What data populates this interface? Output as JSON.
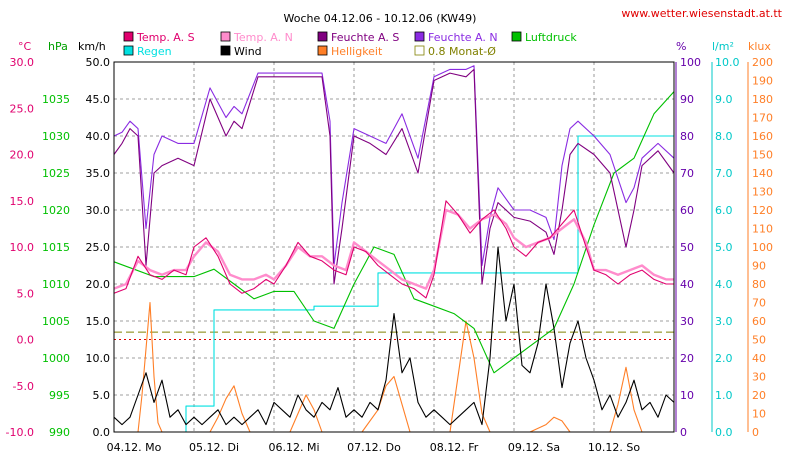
{
  "chart_data": {
    "type": "line",
    "title": "Woche 04.12.06 - 10.12.06 (KW49)",
    "source": "www.wetter.wiesenstadt.at.tt",
    "units": {
      "temp": "°C",
      "pressure": "hPa",
      "wind": "km/h",
      "humidity": "%",
      "rain": "l/m²",
      "light": "klux"
    },
    "axes": {
      "temp": {
        "min": -10,
        "max": 30,
        "ticks": [
          "30.0",
          "25.0",
          "20.0",
          "15.0",
          "10.0",
          "5.0",
          "0.0",
          "-5.0",
          "-10.0"
        ],
        "color": "#e0006e"
      },
      "pressure": {
        "min": 990,
        "max": 1040,
        "ticks": [
          "1035",
          "1030",
          "1025",
          "1020",
          "1015",
          "1010",
          "1005",
          "1000",
          "995",
          "990"
        ],
        "color": "#00c000"
      },
      "wind": {
        "min": 0,
        "max": 50,
        "ticks": [
          "50.0",
          "45.0",
          "40.0",
          "35.0",
          "30.0",
          "25.0",
          "20.0",
          "15.0",
          "10.0",
          "5.0",
          "0.0"
        ],
        "color": "#000000"
      },
      "humidity": {
        "min": 0,
        "max": 100,
        "ticks": [
          "100",
          "90",
          "80",
          "70",
          "60",
          "50",
          "40",
          "30",
          "20",
          "10",
          "0"
        ],
        "color": "#6600aa"
      },
      "rain": {
        "min": 0,
        "max": 10,
        "ticks": [
          "10.0",
          "9.0",
          "8.0",
          "7.0",
          "6.0",
          "5.0",
          "4.0",
          "3.0",
          "2.0",
          "1.0",
          "0.0"
        ],
        "color": "#00c8c8"
      },
      "light": {
        "min": 0,
        "max": 200,
        "ticks": [
          "200",
          "190",
          "180",
          "170",
          "160",
          "150",
          "140",
          "130",
          "120",
          "110",
          "100",
          "90",
          "80",
          "70",
          "60",
          "50",
          "40",
          "30",
          "20",
          "10",
          "0"
        ],
        "color": "#ff7f27"
      }
    },
    "x_labels": [
      "04.12. Mo",
      "05.12. Di",
      "06.12. Mi",
      "07.12. Do",
      "08.12. Fr",
      "09.12. Sa",
      "10.12. So"
    ],
    "legend": [
      {
        "name": "Temp. A. S",
        "color": "#e0006e",
        "kind": "fill"
      },
      {
        "name": "Temp. A. N",
        "color": "#ff8ccc",
        "kind": "fill"
      },
      {
        "name": "Feuchte A. S",
        "color": "#800080",
        "kind": "fill"
      },
      {
        "name": "Feuchte A. N",
        "color": "#8a2be2",
        "kind": "fill"
      },
      {
        "name": "Luftdruck",
        "color": "#00c000",
        "kind": "fill"
      },
      {
        "name": "Regen",
        "color": "#00e0e0",
        "kind": "fill"
      },
      {
        "name": "Wind",
        "color": "#000000",
        "kind": "fill"
      },
      {
        "name": "Helligkeit",
        "color": "#ff7f27",
        "kind": "fill"
      },
      {
        "name": "0.8 Monat-Ø",
        "color": "#808000",
        "kind": "outline"
      }
    ],
    "reference_lines": [
      {
        "name": "0.8 Monat-Ø",
        "axis": "wind",
        "value": 13.5,
        "color": "#808000",
        "style": "dashed"
      },
      {
        "name": "zero",
        "axis": "temp",
        "value": 0.0,
        "color": "#e00000",
        "style": "dotted"
      }
    ],
    "series": [
      {
        "name": "Temp. A. S",
        "axis": "temp",
        "color": "#e0006e",
        "x": [
          0,
          0.15,
          0.3,
          0.45,
          0.6,
          0.75,
          0.9,
          1.0,
          1.15,
          1.3,
          1.45,
          1.6,
          1.75,
          1.9,
          2.0,
          2.15,
          2.3,
          2.45,
          2.6,
          2.75,
          2.9,
          3.0,
          3.15,
          3.3,
          3.45,
          3.6,
          3.75,
          3.9,
          4.0,
          4.15,
          4.3,
          4.45,
          4.6,
          4.75,
          4.9,
          5.0,
          5.15,
          5.3,
          5.45,
          5.6,
          5.75,
          5.9,
          6.0,
          6.15,
          6.3,
          6.45,
          6.6,
          6.75,
          6.9,
          7.0
        ],
        "y": [
          5.0,
          5.5,
          9.0,
          7.0,
          6.5,
          7.5,
          7.0,
          10.0,
          11.0,
          9.0,
          6.0,
          5.0,
          5.5,
          6.5,
          6.0,
          8.0,
          10.5,
          9.0,
          8.5,
          7.5,
          7.0,
          10.0,
          9.5,
          8.0,
          7.0,
          6.0,
          5.5,
          4.5,
          7.0,
          15.0,
          13.5,
          11.5,
          13.0,
          14.0,
          12.0,
          10.0,
          9.0,
          10.5,
          11.0,
          12.5,
          14.0,
          10.0,
          7.5,
          7.0,
          6.0,
          7.0,
          7.5,
          6.5,
          6.0,
          6.0
        ]
      },
      {
        "name": "Temp. A. N",
        "axis": "temp",
        "color": "#ff8ccc",
        "x": [
          0,
          0.15,
          0.3,
          0.45,
          0.6,
          0.75,
          0.9,
          1.0,
          1.15,
          1.3,
          1.45,
          1.6,
          1.75,
          1.9,
          2.0,
          2.15,
          2.3,
          2.45,
          2.6,
          2.75,
          2.9,
          3.0,
          3.15,
          3.3,
          3.45,
          3.6,
          3.75,
          3.9,
          4.0,
          4.15,
          4.3,
          4.45,
          4.6,
          4.75,
          4.9,
          5.0,
          5.15,
          5.3,
          5.45,
          5.6,
          5.75,
          5.9,
          6.0,
          6.15,
          6.3,
          6.45,
          6.6,
          6.75,
          6.9,
          7.0
        ],
        "y": [
          5.5,
          6.0,
          8.5,
          7.5,
          7.0,
          7.5,
          7.5,
          9.0,
          10.5,
          9.5,
          7.0,
          6.5,
          6.5,
          7.0,
          6.5,
          8.0,
          10.0,
          9.0,
          9.0,
          8.0,
          7.5,
          10.5,
          9.5,
          8.5,
          7.5,
          6.5,
          6.0,
          5.5,
          7.5,
          14.0,
          13.5,
          12.0,
          13.0,
          13.5,
          12.5,
          11.0,
          10.0,
          10.5,
          11.0,
          12.0,
          13.0,
          10.5,
          7.5,
          7.5,
          7.0,
          7.5,
          8.0,
          7.0,
          6.5,
          6.5
        ]
      },
      {
        "name": "Feuchte A. S",
        "axis": "humidity",
        "color": "#800080",
        "x": [
          0,
          0.1,
          0.2,
          0.3,
          0.4,
          0.5,
          0.6,
          0.8,
          1.0,
          1.2,
          1.4,
          1.5,
          1.6,
          1.8,
          2.0,
          2.2,
          2.4,
          2.6,
          2.7,
          2.75,
          2.85,
          3.0,
          3.2,
          3.4,
          3.6,
          3.8,
          4.0,
          4.2,
          4.4,
          4.5,
          4.6,
          4.7,
          4.8,
          5.0,
          5.2,
          5.4,
          5.5,
          5.6,
          5.7,
          5.8,
          6.0,
          6.2,
          6.4,
          6.5,
          6.6,
          6.8,
          7.0
        ],
        "y": [
          75,
          78,
          82,
          80,
          45,
          70,
          72,
          74,
          72,
          90,
          80,
          84,
          82,
          96,
          96,
          96,
          96,
          96,
          80,
          40,
          55,
          80,
          78,
          75,
          82,
          70,
          95,
          97,
          96,
          98,
          40,
          55,
          62,
          58,
          57,
          54,
          48,
          60,
          75,
          78,
          75,
          70,
          50,
          60,
          72,
          76,
          70
        ]
      },
      {
        "name": "Feuchte A. N",
        "axis": "humidity",
        "color": "#8a2be2",
        "x": [
          0,
          0.1,
          0.2,
          0.3,
          0.4,
          0.5,
          0.6,
          0.8,
          1.0,
          1.2,
          1.4,
          1.5,
          1.6,
          1.8,
          2.0,
          2.2,
          2.4,
          2.6,
          2.7,
          2.75,
          2.85,
          3.0,
          3.2,
          3.4,
          3.6,
          3.8,
          4.0,
          4.2,
          4.4,
          4.5,
          4.6,
          4.7,
          4.8,
          5.0,
          5.2,
          5.4,
          5.5,
          5.6,
          5.7,
          5.8,
          6.0,
          6.2,
          6.4,
          6.5,
          6.6,
          6.8,
          7.0
        ],
        "y": [
          80,
          81,
          84,
          82,
          55,
          75,
          80,
          78,
          78,
          93,
          85,
          88,
          86,
          97,
          97,
          97,
          97,
          97,
          84,
          45,
          62,
          82,
          80,
          78,
          86,
          74,
          96,
          98,
          98,
          99,
          45,
          58,
          66,
          60,
          60,
          58,
          52,
          72,
          82,
          84,
          80,
          75,
          62,
          66,
          74,
          78,
          74
        ]
      },
      {
        "name": "Luftdruck",
        "axis": "pressure",
        "color": "#00c000",
        "x": [
          0,
          0.25,
          0.5,
          0.75,
          1.0,
          1.25,
          1.5,
          1.75,
          2.0,
          2.25,
          2.5,
          2.75,
          3.0,
          3.25,
          3.5,
          3.75,
          4.0,
          4.25,
          4.5,
          4.75,
          5.0,
          5.25,
          5.5,
          5.75,
          6.0,
          6.25,
          6.5,
          6.75,
          7.0
        ],
        "y": [
          1013,
          1012,
          1011,
          1011,
          1011,
          1012,
          1010,
          1008,
          1009,
          1009,
          1005,
          1004,
          1010,
          1015,
          1014,
          1008,
          1007,
          1006,
          1004,
          998,
          1000,
          1002,
          1004,
          1010,
          1018,
          1025,
          1027,
          1033,
          1036
        ]
      },
      {
        "name": "Regen",
        "axis": "rain",
        "color": "#00e0e0",
        "x": [
          0,
          0.9,
          0.9,
          1.25,
          1.25,
          2.5,
          2.5,
          3.3,
          3.3,
          5.0,
          5.0,
          5.8,
          5.8,
          7.0
        ],
        "y": [
          0,
          0,
          0.7,
          0.7,
          3.3,
          3.3,
          3.4,
          3.4,
          4.3,
          4.3,
          4.3,
          4.3,
          8.0,
          8.0
        ]
      },
      {
        "name": "Wind",
        "axis": "wind",
        "color": "#000000",
        "x": [
          0,
          0.1,
          0.2,
          0.3,
          0.4,
          0.5,
          0.6,
          0.7,
          0.8,
          0.9,
          1.0,
          1.1,
          1.2,
          1.3,
          1.4,
          1.5,
          1.6,
          1.7,
          1.8,
          1.9,
          2.0,
          2.1,
          2.2,
          2.3,
          2.4,
          2.5,
          2.6,
          2.7,
          2.8,
          2.9,
          3.0,
          3.1,
          3.2,
          3.3,
          3.4,
          3.5,
          3.6,
          3.7,
          3.8,
          3.9,
          4.0,
          4.1,
          4.2,
          4.3,
          4.4,
          4.5,
          4.6,
          4.7,
          4.8,
          4.9,
          5.0,
          5.1,
          5.2,
          5.3,
          5.4,
          5.5,
          5.6,
          5.7,
          5.8,
          5.9,
          6.0,
          6.1,
          6.2,
          6.3,
          6.4,
          6.5,
          6.6,
          6.7,
          6.8,
          6.9,
          7.0
        ],
        "y": [
          2,
          1,
          2,
          5,
          8,
          4,
          7,
          2,
          3,
          1,
          2,
          1,
          2,
          3,
          1,
          2,
          1,
          2,
          3,
          1,
          4,
          3,
          2,
          5,
          3,
          2,
          4,
          3,
          6,
          2,
          3,
          2,
          4,
          3,
          7,
          16,
          8,
          10,
          4,
          2,
          3,
          2,
          1,
          2,
          3,
          4,
          1,
          10,
          25,
          15,
          20,
          9,
          8,
          12,
          20,
          14,
          6,
          12,
          15,
          10,
          7,
          3,
          5,
          2,
          4,
          7,
          3,
          4,
          2,
          5,
          4
        ]
      },
      {
        "name": "Helligkeit",
        "axis": "light",
        "color": "#ff7f27",
        "x": [
          0,
          0.3,
          0.35,
          0.4,
          0.45,
          0.5,
          0.55,
          0.6,
          1.2,
          1.3,
          1.4,
          1.5,
          1.6,
          1.7,
          2.2,
          2.3,
          2.4,
          2.5,
          2.6,
          3.1,
          3.3,
          3.4,
          3.5,
          3.6,
          3.7,
          4.2,
          4.3,
          4.4,
          4.5,
          4.6,
          4.7,
          5.2,
          5.4,
          5.5,
          5.6,
          5.7,
          6.2,
          6.3,
          6.4,
          6.5,
          6.6,
          7.0
        ],
        "y": [
          0,
          0,
          20,
          45,
          70,
          30,
          5,
          0,
          0,
          8,
          18,
          25,
          10,
          0,
          0,
          10,
          20,
          12,
          0,
          0,
          12,
          25,
          30,
          15,
          0,
          0,
          30,
          60,
          40,
          10,
          0,
          0,
          4,
          8,
          6,
          0,
          0,
          15,
          35,
          12,
          0,
          0
        ]
      }
    ]
  }
}
